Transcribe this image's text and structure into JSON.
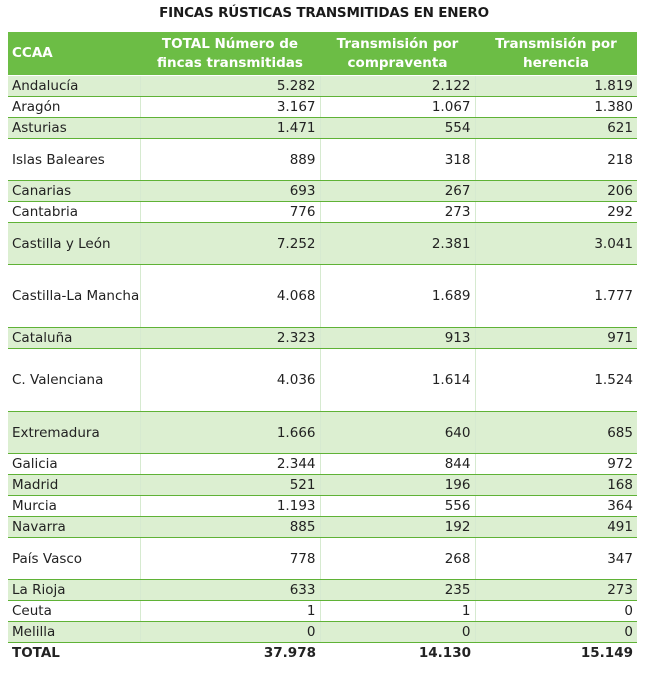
{
  "title": "FINCAS RÚSTICAS TRANSMITIDAS EN ENERO",
  "table": {
    "headers": [
      "CCAA",
      "TOTAL Número de fincas transmitidas",
      "Transmisión por compraventa",
      "Transmisión por herencia"
    ],
    "rows": [
      [
        "Andalucía",
        "5.282",
        "2.122",
        "1.819"
      ],
      [
        "Aragón",
        "3.167",
        "1.067",
        "1.380"
      ],
      [
        "Asturias",
        "1.471",
        "554",
        "621"
      ],
      [
        "Islas Baleares",
        "889",
        "318",
        "218"
      ],
      [
        "Canarias",
        "693",
        "267",
        "206"
      ],
      [
        "Cantabria",
        "776",
        "273",
        "292"
      ],
      [
        "Castilla y León",
        "7.252",
        "2.381",
        "3.041"
      ],
      [
        "Castilla-La Mancha",
        "4.068",
        "1.689",
        "1.777"
      ],
      [
        "Cataluña",
        "2.323",
        "913",
        "971"
      ],
      [
        "C.  Valenciana",
        "4.036",
        "1.614",
        "1.524"
      ],
      [
        "Extremadura",
        "1.666",
        "640",
        "685"
      ],
      [
        "Galicia",
        "2.344",
        "844",
        "972"
      ],
      [
        "Madrid",
        "521",
        "196",
        "168"
      ],
      [
        "Murcia",
        "1.193",
        "556",
        "364"
      ],
      [
        "Navarra",
        "885",
        "192",
        "491"
      ],
      [
        "País Vasco",
        "778",
        "268",
        "347"
      ],
      [
        "La Rioja",
        "633",
        "235",
        "273"
      ],
      [
        "Ceuta",
        "1",
        "1",
        "0"
      ],
      [
        "Melilla",
        "0",
        "0",
        "0"
      ]
    ],
    "total": [
      "TOTAL",
      "37.978",
      "14.130",
      "15.149"
    ]
  },
  "colors": {
    "header_bg": "#6cbd45",
    "row_shade": "#dcefd1",
    "row_border": "#5fb236"
  }
}
